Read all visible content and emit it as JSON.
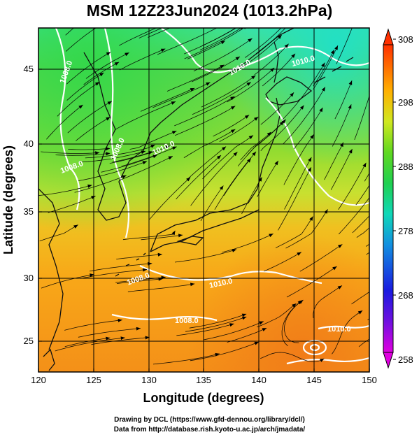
{
  "title": "MSM 12Z23Jun2024 (1013.2hPa)",
  "x_axis": {
    "label": "Longitude (degrees)",
    "ticks": [
      "120",
      "125",
      "130",
      "135",
      "140",
      "145",
      "150"
    ],
    "range": [
      120,
      150
    ]
  },
  "y_axis": {
    "label": "Latitude  (degrees)",
    "ticks": [
      "25",
      "30",
      "35",
      "40",
      "45"
    ],
    "range": [
      22.4,
      47.6
    ]
  },
  "colorbar": {
    "ticks": [
      "308",
      "298",
      "288",
      "278",
      "268",
      "258"
    ],
    "range": [
      258,
      308
    ],
    "colors": [
      "#e000e0",
      "#1a1ae0",
      "#12a8e0",
      "#10d8b0",
      "#30d020",
      "#c8e820",
      "#ffb000",
      "#ff4000"
    ]
  },
  "contour_labels": [
    "1008.0",
    "1008.0",
    "1010.0",
    "1010.0",
    "1008.0",
    "1010.0",
    "1008.0",
    "1010.0",
    "1008.0",
    "1010.0"
  ],
  "credits": {
    "line1": "Drawing by DCL (https://www.gfd-dennou.org/library/dcl/)",
    "line2": "Data from http://database.rish.kyoto-u.ac.jp/arch/jmadata/"
  }
}
